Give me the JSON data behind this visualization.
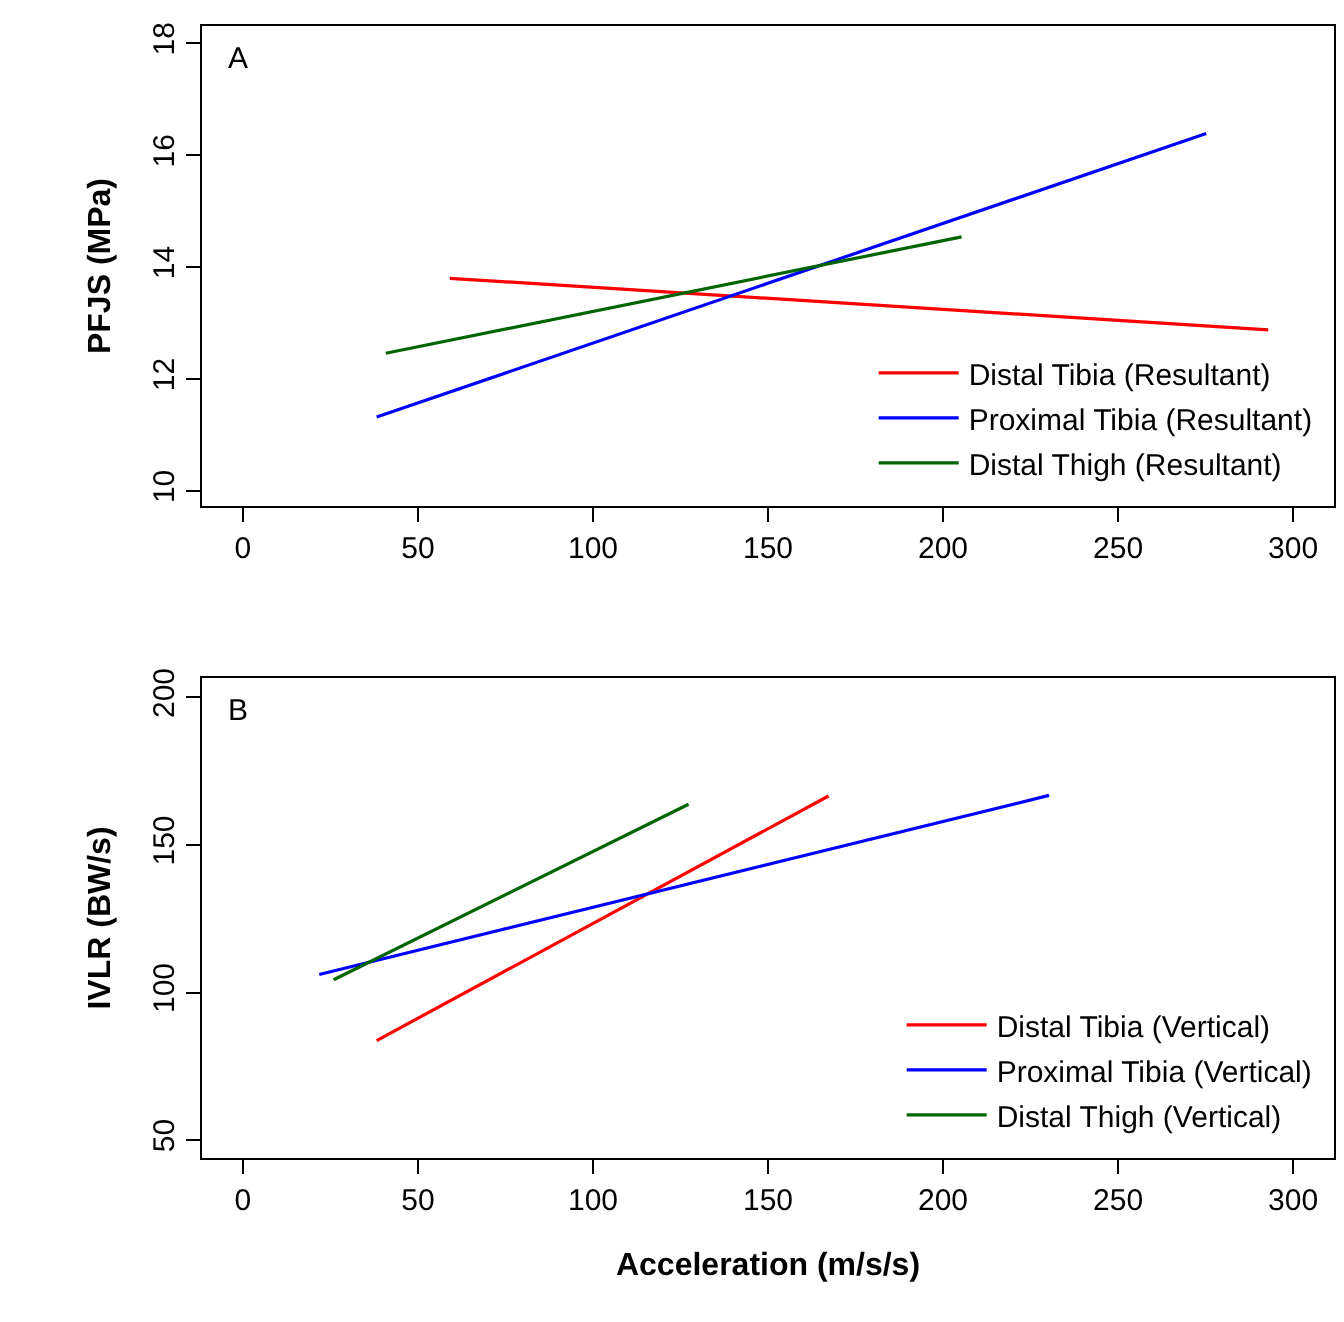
{
  "chart_data": [
    {
      "type": "line",
      "xlim": [
        -11.7,
        311.7
      ],
      "ylim": [
        9.73,
        18.31
      ],
      "xticks": [
        0,
        50,
        100,
        150,
        200,
        250,
        300
      ],
      "yticks": [
        10,
        12,
        14,
        16,
        18
      ],
      "ylabel": "PFJS (MPa)",
      "annotations": [
        "A"
      ],
      "legend": "bottom right",
      "series": [
        {
          "name": "Distal Tibia (Resultant)",
          "color": "#ff0000",
          "x": [
            59.1,
            292.9
          ],
          "values": [
            13.8,
            12.88
          ]
        },
        {
          "name": "Proximal Tibia (Resultant)",
          "color": "#0000ff",
          "x": [
            38.2,
            275.2
          ],
          "values": [
            11.32,
            16.39
          ]
        },
        {
          "name": "Distal Thigh (Resultant)",
          "color": "#006400",
          "x": [
            40.8,
            205.3
          ],
          "values": [
            12.46,
            14.54
          ]
        }
      ]
    },
    {
      "type": "line",
      "xlim": [
        -11.7,
        311.7
      ],
      "ylim": [
        43.9,
        206.6
      ],
      "xticks": [
        0,
        50,
        100,
        150,
        200,
        250,
        300
      ],
      "yticks": [
        50,
        100,
        150,
        200
      ],
      "xlabel": "Acceleration (m/s/s)",
      "ylabel": "IVLR (BW/s)",
      "annotations": [
        "B"
      ],
      "legend": "bottom right",
      "series": [
        {
          "name": "Distal Tibia (Vertical)",
          "color": "#ff0000",
          "x": [
            38.2,
            167.3
          ],
          "values": [
            83.7,
            166.6
          ]
        },
        {
          "name": "Proximal Tibia (Vertical)",
          "color": "#0000ff",
          "x": [
            21.8,
            230.3
          ],
          "values": [
            106.1,
            166.8
          ]
        },
        {
          "name": "Distal Thigh (Vertical)",
          "color": "#006400",
          "x": [
            25.9,
            127.3
          ],
          "values": [
            104.3,
            163.8
          ]
        }
      ]
    }
  ]
}
